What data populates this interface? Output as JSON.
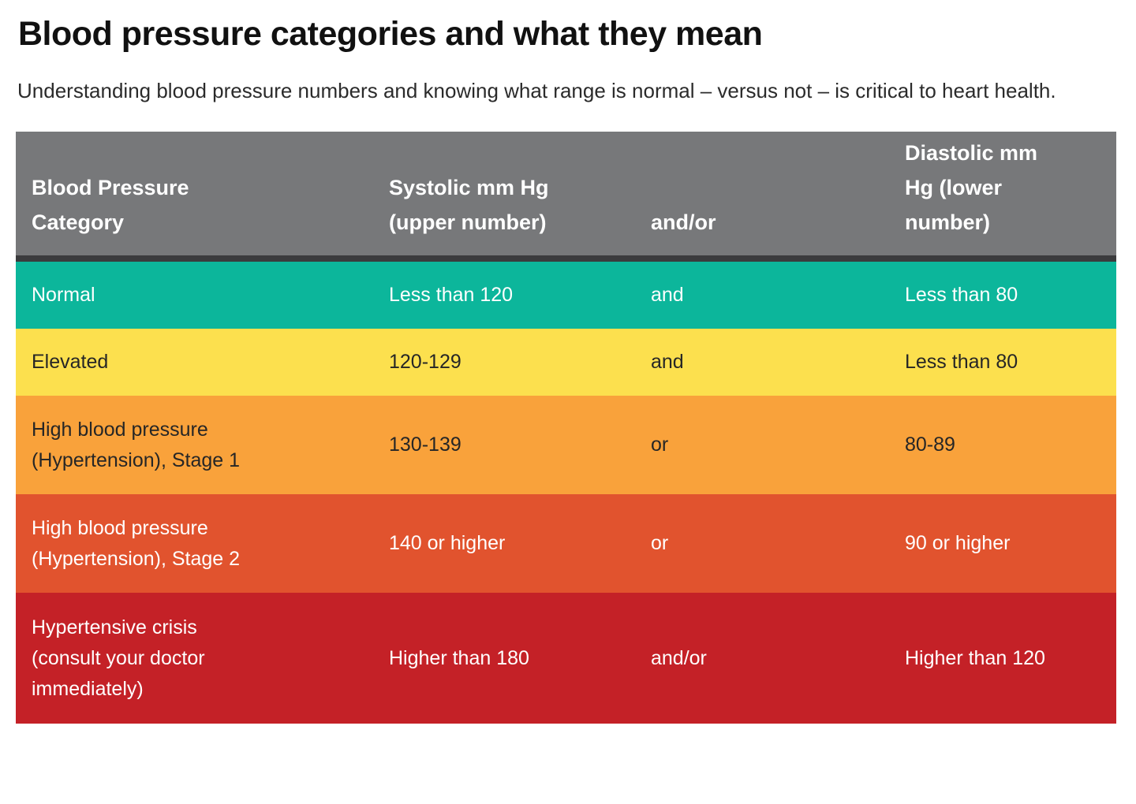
{
  "page": {
    "title": "Blood pressure categories and what they mean",
    "subtitle": "Understanding blood pressure numbers and knowing what range is normal – versus not – is critical to heart health."
  },
  "table": {
    "header_bg": "#77787a",
    "header_text_color": "#ffffff",
    "divider_color": "#3b3b3d",
    "headers": [
      "Blood Pressure Category",
      "Systolic mm Hg (upper number)",
      "and/or",
      "Diastolic mm Hg (lower number)"
    ],
    "rows": [
      {
        "category": "Normal",
        "systolic": "Less than 120",
        "connector": "and",
        "diastolic": "Less than 80",
        "color": "#0cb69b",
        "text_color": "#ffffff"
      },
      {
        "category": "Elevated",
        "systolic": "120-129",
        "connector": "and",
        "diastolic": "Less than 80",
        "color": "#fce04e",
        "text_color": "#262626"
      },
      {
        "category": "High blood pressure (Hypertension), Stage 1",
        "systolic": "130-139",
        "connector": "or",
        "diastolic": "80-89",
        "color": "#f9a23b",
        "text_color": "#262626"
      },
      {
        "category": "High blood pressure (Hypertension), Stage 2",
        "systolic": "140 or higher",
        "connector": "or",
        "diastolic": "90 or higher",
        "color": "#e1532e",
        "text_color": "#ffffff"
      },
      {
        "category": "Hypertensive crisis (consult your doctor immediately)",
        "systolic": "Higher than 180",
        "connector": "and/or",
        "diastolic": "Higher than 120",
        "color": "#c42127",
        "text_color": "#ffffff"
      }
    ]
  }
}
